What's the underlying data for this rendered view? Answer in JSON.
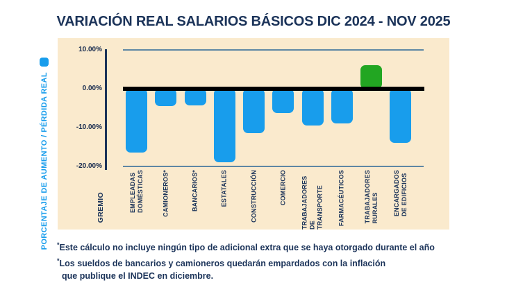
{
  "chart_data": {
    "type": "bar",
    "title": "VARIACIÓN REAL SALARIOS BÁSICOS DIC 2024 -  NOV 2025",
    "xlabel": "GREMIO",
    "ylabel": "PORCENTAJE DE AUMENTO / PÉRDIDA REAL",
    "categories": [
      "EMPLEADAS\nDOMÉSTICAS",
      "CAMIONEROS*",
      "BANCARIOS*",
      "ESTATALES",
      "CONSTRUCCIÓN",
      "COMERCIO",
      "TRABAJADORES DE\nTRANSPORTE",
      "FARMACÉUTICOS",
      "TRABAJADORES\nRURALES",
      "ENCARGADOS\nDE EDIFICIOS"
    ],
    "values": [
      -16.5,
      -4.5,
      -4.2,
      -19,
      -11.5,
      -6.3,
      -9.5,
      -9,
      6,
      -14
    ],
    "units": "%",
    "ylim": [
      -20,
      10
    ],
    "yticks": [
      {
        "label": "10.00%",
        "value": 10
      },
      {
        "label": "0.00%",
        "value": 0
      },
      {
        "label": "-10.00%",
        "value": -10
      },
      {
        "label": "-20.00%",
        "value": -20
      }
    ],
    "grid": "horizontal lines at 10% and -20%, thick black zero line",
    "legend_position": "left",
    "colors": {
      "negative_bar": "#189DEC",
      "positive_bar": "#22A622",
      "plot_background": "#FAEACD",
      "text": "#1B3359",
      "axis_label_blue": "#189DEC",
      "gridline": "#5E87A4",
      "zero_line": "#000000"
    }
  },
  "footnotes": {
    "marker": "*",
    "note1": "Este cálculo no incluye ningún tipo de adicional extra que se haya otorgado durante el año",
    "note2_line1": "Los sueldos de bancarios y camioneros quedarán empardados con la inflación",
    "note2_line2": "que publique el INDEC en diciembre."
  }
}
